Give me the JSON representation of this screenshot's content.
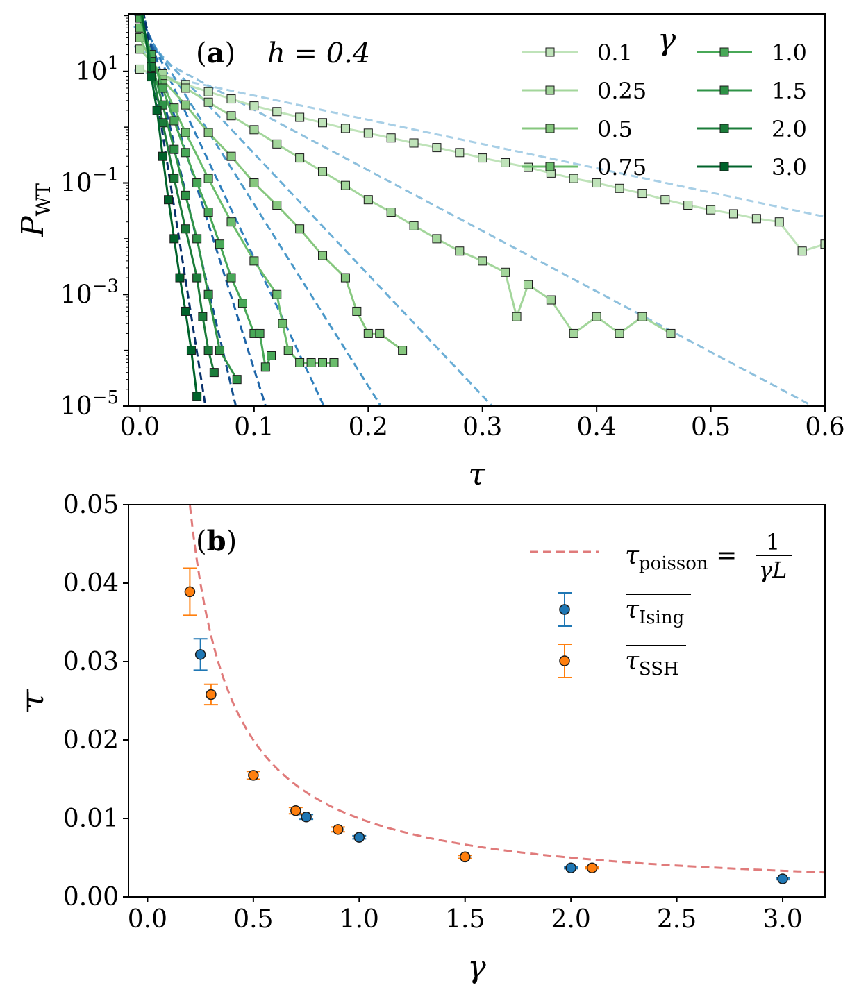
{
  "chart_data": [
    {
      "type": "line",
      "panel": "(a)",
      "panel_letter": "a",
      "annotation": "h = 0.4",
      "yscale": "log",
      "xlabel": "τ",
      "ylabel": "P",
      "ylabel_sub": "WT",
      "xlim": [
        -0.01,
        0.6
      ],
      "ylim_exponent": [
        -5,
        2.03
      ],
      "xticks": [
        0.0,
        0.1,
        0.2,
        0.3,
        0.4,
        0.5,
        0.6
      ],
      "xtick_labels": [
        "0.0",
        "0.1",
        "0.2",
        "0.3",
        "0.4",
        "0.5",
        "0.6"
      ],
      "yticks": [
        {
          "exp": 1,
          "base": "10",
          "sup": "1"
        },
        {
          "exp": -1,
          "base": "10",
          "sup": "−1"
        },
        {
          "exp": -3,
          "base": "10",
          "sup": "−3"
        },
        {
          "exp": -5,
          "base": "10",
          "sup": "−5"
        }
      ],
      "legend_title": "γ",
      "legend_location": "top-right",
      "series": [
        {
          "name": "0.1",
          "gamma": 0.1,
          "color": "#bfe3b9",
          "fit_color": "#a8cfe6",
          "x": [
            0.0,
            0.02,
            0.04,
            0.06,
            0.08,
            0.1,
            0.12,
            0.14,
            0.16,
            0.18,
            0.2,
            0.22,
            0.24,
            0.26,
            0.28,
            0.3,
            0.32,
            0.34,
            0.36,
            0.38,
            0.4,
            0.42,
            0.44,
            0.46,
            0.48,
            0.5,
            0.52,
            0.54,
            0.56,
            0.58,
            0.6
          ],
          "y": [
            11,
            7.5,
            5.8,
            4.3,
            3.2,
            2.4,
            1.9,
            1.5,
            1.2,
            0.95,
            0.78,
            0.64,
            0.52,
            0.43,
            0.35,
            0.28,
            0.23,
            0.19,
            0.15,
            0.12,
            0.1,
            0.08,
            0.065,
            0.05,
            0.04,
            0.033,
            0.028,
            0.023,
            0.02,
            0.006,
            0.008
          ]
        },
        {
          "name": "0.25",
          "gamma": 0.25,
          "color": "#a3d69b",
          "fit_color": "#8ec0dd",
          "x": [
            0.0,
            0.02,
            0.04,
            0.06,
            0.08,
            0.1,
            0.12,
            0.14,
            0.16,
            0.18,
            0.2,
            0.22,
            0.24,
            0.26,
            0.28,
            0.3,
            0.32,
            0.33,
            0.34,
            0.36,
            0.38,
            0.4,
            0.42,
            0.44,
            0.465
          ],
          "y": [
            25,
            9,
            5,
            2.8,
            1.6,
            0.9,
            0.5,
            0.28,
            0.16,
            0.09,
            0.05,
            0.03,
            0.017,
            0.01,
            0.006,
            0.004,
            0.0025,
            0.0004,
            0.0015,
            0.0008,
            0.0002,
            0.0004,
            0.0002,
            0.0004,
            0.0002
          ]
        },
        {
          "name": "0.5",
          "gamma": 0.5,
          "color": "#86c77e",
          "fit_color": "#6baed6",
          "x": [
            0.0,
            0.01,
            0.02,
            0.04,
            0.06,
            0.08,
            0.1,
            0.12,
            0.14,
            0.16,
            0.18,
            0.19,
            0.2,
            0.21,
            0.23
          ],
          "y": [
            40,
            15,
            7,
            2.5,
            0.8,
            0.3,
            0.1,
            0.04,
            0.015,
            0.005,
            0.002,
            0.0005,
            0.0002,
            0.0002,
            0.0001
          ]
        },
        {
          "name": "0.75",
          "gamma": 0.75,
          "color": "#6bbd6c",
          "fit_color": "#4a98c9",
          "x": [
            0.0,
            0.01,
            0.02,
            0.03,
            0.04,
            0.06,
            0.08,
            0.1,
            0.12,
            0.125,
            0.13,
            0.14,
            0.15,
            0.16,
            0.17
          ],
          "y": [
            60,
            18,
            6,
            2.2,
            0.8,
            0.12,
            0.02,
            0.004,
            0.001,
            0.0003,
            0.0001,
            6e-05,
            6e-05,
            6e-05,
            6e-05
          ]
        },
        {
          "name": "1.0",
          "gamma": 1.0,
          "color": "#48a857",
          "fit_color": "#2f7fbd",
          "x": [
            0.0,
            0.01,
            0.02,
            0.03,
            0.04,
            0.05,
            0.06,
            0.07,
            0.08,
            0.09,
            0.1,
            0.105,
            0.11,
            0.115
          ],
          "y": [
            90,
            20,
            5,
            1.3,
            0.35,
            0.1,
            0.03,
            0.008,
            0.002,
            0.0007,
            0.0002,
            0.0002,
            5e-05,
            8e-05
          ]
        },
        {
          "name": "1.5",
          "gamma": 1.5,
          "color": "#2f9347",
          "fit_color": "#1f65a8",
          "x": [
            0.0,
            0.01,
            0.02,
            0.03,
            0.04,
            0.05,
            0.06,
            0.07,
            0.085
          ],
          "y": [
            120,
            15,
            2.5,
            0.4,
            0.06,
            0.01,
            0.001,
            0.0001,
            3e-05
          ]
        },
        {
          "name": "2.0",
          "gamma": 2.0,
          "color": "#1b7c3a",
          "fit_color": "#124f8e",
          "x": [
            0.0,
            0.01,
            0.02,
            0.03,
            0.04,
            0.05,
            0.055,
            0.06,
            0.065
          ],
          "y": [
            150,
            12,
            1.2,
            0.12,
            0.015,
            0.002,
            0.0004,
            0.0001,
            4e-05
          ]
        },
        {
          "name": "3.0",
          "gamma": 3.0,
          "color": "#00632b",
          "fit_color": "#08306b",
          "x": [
            0.0,
            0.01,
            0.015,
            0.02,
            0.025,
            0.03,
            0.035,
            0.04,
            0.045,
            0.05
          ],
          "y": [
            200,
            8,
            2,
            0.3,
            0.05,
            0.01,
            0.002,
            0.0005,
            0.0001,
            1.5e-05
          ]
        }
      ]
    },
    {
      "type": "scatter",
      "panel": "(b)",
      "panel_letter": "b",
      "xlabel": "γ",
      "ylabel": "τ",
      "xlim": [
        -0.09,
        3.2
      ],
      "ylim": [
        0,
        0.05
      ],
      "xticks": [
        0.0,
        0.5,
        1.0,
        1.5,
        2.0,
        2.5,
        3.0
      ],
      "xtick_labels": [
        "0.0",
        "0.5",
        "1.0",
        "1.5",
        "2.0",
        "2.5",
        "3.0"
      ],
      "yticks": [
        0.0,
        0.01,
        0.02,
        0.03,
        0.04,
        0.05
      ],
      "ytick_labels": [
        "0.00",
        "0.01",
        "0.02",
        "0.03",
        "0.04",
        "0.05"
      ],
      "curve": {
        "label_lhs": "τ",
        "label_sub": "poisson",
        "label_eq": "=",
        "num": "1",
        "den": "γL",
        "L": 100,
        "color": "#e07b7b"
      },
      "legend_location": "top-right",
      "series": [
        {
          "name": "Ising",
          "label_base": "τ",
          "label_sub": "Ising",
          "color": "#1f77b4",
          "x": [
            0.25,
            0.75,
            1.0,
            1.5,
            2.0,
            3.0
          ],
          "y": [
            0.0309,
            0.0102,
            0.0076,
            0.0051,
            0.0037,
            0.0023
          ],
          "err": [
            0.002,
            0.0003,
            0.0002,
            0.0002,
            0.0001,
            0.0001
          ]
        },
        {
          "name": "SSH",
          "label_base": "τ",
          "label_sub": "SSH",
          "color": "#ff7f0e",
          "x": [
            0.2,
            0.3,
            0.5,
            0.7,
            0.9,
            1.5,
            2.1
          ],
          "y": [
            0.0389,
            0.0258,
            0.0155,
            0.011,
            0.0086,
            0.0051,
            0.0037
          ],
          "err": [
            0.003,
            0.0013,
            0.0005,
            0.0004,
            0.0003,
            0.0002,
            0.0001
          ]
        }
      ]
    }
  ]
}
